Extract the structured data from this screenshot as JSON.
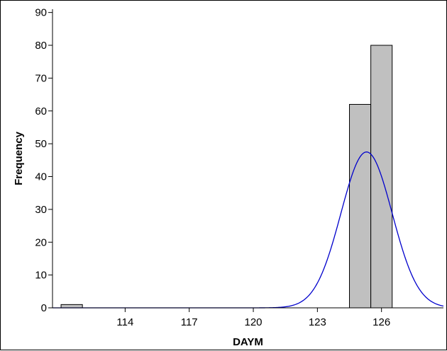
{
  "chart_data": {
    "type": "bar",
    "subtype": "histogram-with-normal-fit",
    "xlabel": "DAYM",
    "ylabel": "Frequency",
    "xlim": [
      110.6,
      128.9
    ],
    "ylim": [
      0,
      91
    ],
    "x_ticks": [
      114,
      117,
      120,
      123,
      126
    ],
    "y_ticks": [
      0,
      10,
      20,
      30,
      40,
      50,
      60,
      70,
      80,
      90
    ],
    "grid": false,
    "bin_width": 1,
    "bins": [
      {
        "start": 111,
        "end": 112,
        "count": 1
      },
      {
        "start": 124.5,
        "end": 125.5,
        "count": 62
      },
      {
        "start": 125.5,
        "end": 126.5,
        "count": 80
      }
    ],
    "normal_fit": {
      "mean": 125.3,
      "sd": 1.2,
      "peak_frequency": 47.5
    },
    "colors": {
      "bar_fill": "#c0c0c0",
      "bar_stroke": "#000000",
      "curve": "#0000cc",
      "axis": "#000000"
    }
  }
}
